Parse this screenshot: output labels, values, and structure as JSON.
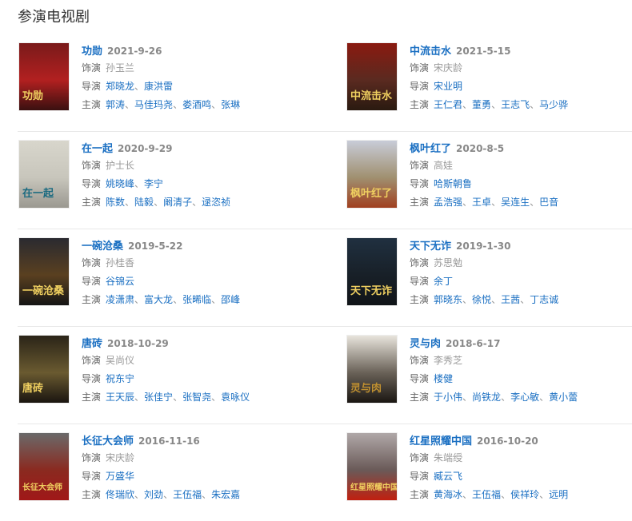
{
  "section_title": "参演电视剧",
  "labels": {
    "role": "饰演",
    "director": "导演",
    "cast": "主演",
    "separator": "、"
  },
  "colors": {
    "link": "#1a6fc2",
    "muted": "#999999",
    "text": "#666666"
  },
  "dramas": [
    {
      "title": "功勋",
      "date": "2021-9-26",
      "role": "孙玉兰",
      "directors": [
        "郑晓龙",
        "康洪雷"
      ],
      "cast": [
        "郭涛",
        "马佳玛尧",
        "娄酒鸣",
        "张琳"
      ],
      "poster_text": "功勋",
      "poster_colors": [
        "#7a1a1a",
        "#b22020",
        "#3a1010"
      ]
    },
    {
      "title": "中流击水",
      "date": "2021-5-15",
      "role": "宋庆龄",
      "directors": [
        "宋业明"
      ],
      "cast": [
        "王仁君",
        "董勇",
        "王志飞",
        "马少骅"
      ],
      "poster_text": "中流击水",
      "poster_colors": [
        "#8a1a10",
        "#5a2a20",
        "#2a1a10"
      ]
    },
    {
      "title": "在一起",
      "date": "2020-9-29",
      "role": "护士长",
      "directors": [
        "姚晓峰",
        "李宁"
      ],
      "cast": [
        "陈数",
        "陆毅",
        "阚清子",
        "逯恣祯"
      ],
      "poster_text": "在一起",
      "poster_colors": [
        "#d8d6cc",
        "#c8c6bc",
        "#9a9890"
      ]
    },
    {
      "title": "枫叶红了",
      "date": "2020-8-5",
      "role": "高娃",
      "directors": [
        "哈斯朝鲁"
      ],
      "cast": [
        "孟浩强",
        "王卓",
        "吴连生",
        "巴音"
      ],
      "poster_text": "枫叶红了",
      "poster_colors": [
        "#c8ccd8",
        "#a09070",
        "#a04020"
      ]
    },
    {
      "title": "一碗沧桑",
      "date": "2019-5-22",
      "role": "孙桂香",
      "directors": [
        "谷锦云"
      ],
      "cast": [
        "凌潇肃",
        "富大龙",
        "张晞临",
        "邵峰"
      ],
      "poster_text": "一碗沧桑",
      "poster_colors": [
        "#2a2a30",
        "#5a4020",
        "#151515"
      ]
    },
    {
      "title": "天下无诈",
      "date": "2019-1-30",
      "role": "苏思勉",
      "directors": [
        "余丁"
      ],
      "cast": [
        "郭晓东",
        "徐悦",
        "王茜",
        "丁志诚"
      ],
      "poster_text": "天下无诈",
      "poster_colors": [
        "#203040",
        "#182028",
        "#101418"
      ]
    },
    {
      "title": "唐砖",
      "date": "2018-10-29",
      "role": "吴尚仪",
      "directors": [
        "祝东宁"
      ],
      "cast": [
        "王天辰",
        "张佳宁",
        "张智尧",
        "袁咏仪"
      ],
      "poster_text": "唐砖",
      "poster_colors": [
        "#2a2418",
        "#6a5a30",
        "#1a1510"
      ]
    },
    {
      "title": "灵与肉",
      "date": "2018-6-17",
      "role": "李秀芝",
      "directors": [
        "楼健"
      ],
      "cast": [
        "于小伟",
        "尚铁龙",
        "李心敏",
        "黄小蕾"
      ],
      "poster_text": "灵与肉",
      "poster_colors": [
        "#e8e4dc",
        "#6a6258",
        "#1a1612"
      ]
    },
    {
      "title": "长征大会师",
      "date": "2016-11-16",
      "role": "宋庆龄",
      "directors": [
        "万盛华"
      ],
      "cast": [
        "佟瑞欣",
        "刘劲",
        "王伍福",
        "朱宏嘉"
      ],
      "poster_text": "长征大会师",
      "poster_colors": [
        "#6a6a6a",
        "#8a2a20",
        "#a01818"
      ]
    },
    {
      "title": "红星照耀中国",
      "date": "2016-10-20",
      "role": "朱端绶",
      "directors": [
        "臧云飞"
      ],
      "cast": [
        "黄海冰",
        "王伍福",
        "侯祥玲",
        "远明"
      ],
      "poster_text": "红星照耀中国",
      "poster_colors": [
        "#b0a8a8",
        "#6a5a58",
        "#c02010"
      ]
    }
  ]
}
